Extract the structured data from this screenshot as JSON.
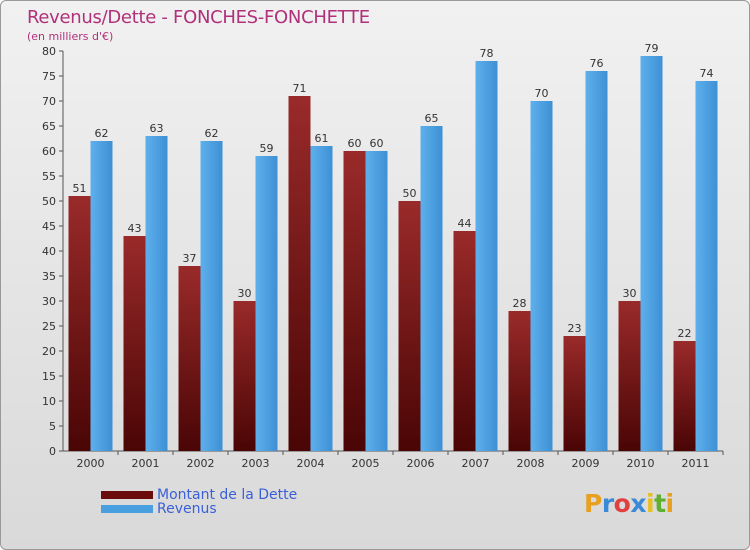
{
  "header": {
    "title": "Revenus/Dette - FONCHES-FONCHETTE",
    "subtitle": "(en milliers d'€)"
  },
  "legend": {
    "items": [
      {
        "label": "Montant de la Dette",
        "color": "#6b0b0b"
      },
      {
        "label": "Revenus",
        "color": "#4a9fe0"
      }
    ]
  },
  "brand": {
    "logo_text": "Proxiti",
    "letters": [
      "P",
      "r",
      "o",
      "x",
      "i",
      "t",
      "i"
    ],
    "colors": [
      "#e8a020",
      "#3a8ad8",
      "#e04040",
      "#3a8ad8",
      "#e8c020",
      "#60b030",
      "#e8a020"
    ]
  },
  "chart_data": {
    "type": "bar",
    "title": "Revenus/Dette - FONCHES-FONCHETTE",
    "ylabel": "(en milliers d'€)",
    "categories": [
      "2000",
      "2001",
      "2002",
      "2003",
      "2004",
      "2005",
      "2006",
      "2007",
      "2008",
      "2009",
      "2010",
      "2011"
    ],
    "series": [
      {
        "name": "Montant de la Dette",
        "color": "#6b0b0b",
        "values": [
          51,
          43,
          37,
          30,
          71,
          60,
          50,
          44,
          28,
          23,
          30,
          22
        ]
      },
      {
        "name": "Revenus",
        "color": "#4a9fe0",
        "values": [
          62,
          63,
          62,
          59,
          61,
          60,
          65,
          78,
          70,
          76,
          79,
          74
        ]
      }
    ],
    "ylim": [
      0,
      80
    ],
    "ytick_step": 5,
    "grid": false
  }
}
